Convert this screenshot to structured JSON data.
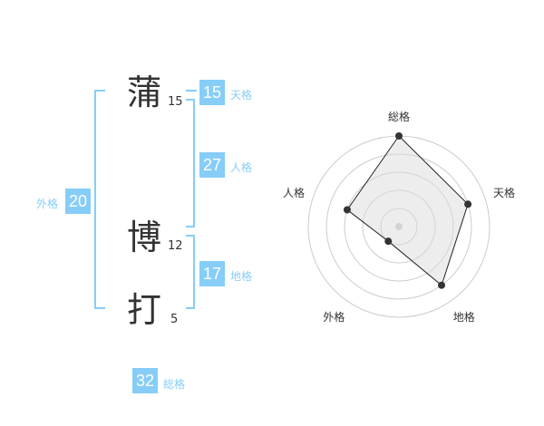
{
  "name": [
    {
      "char": "蒲",
      "strokes": "15"
    },
    {
      "char": "博",
      "strokes": "12"
    },
    {
      "char": "打",
      "strokes": "5"
    }
  ],
  "fortunes": {
    "tenkaku": {
      "value": "15",
      "label": "天格"
    },
    "jinkaku": {
      "value": "27",
      "label": "人格"
    },
    "chikaku": {
      "value": "17",
      "label": "地格"
    },
    "gaikaku": {
      "value": "20",
      "label": "外格"
    },
    "soukaku": {
      "value": "32",
      "label": "総格"
    }
  },
  "accent_color": "#86cdf8",
  "chart_data": {
    "type": "radar",
    "axes": [
      "総格",
      "天格",
      "地格",
      "外格",
      "人格"
    ],
    "values": [
      5,
      4,
      4,
      1,
      3
    ],
    "range": [
      0,
      5
    ],
    "rings": 5
  }
}
